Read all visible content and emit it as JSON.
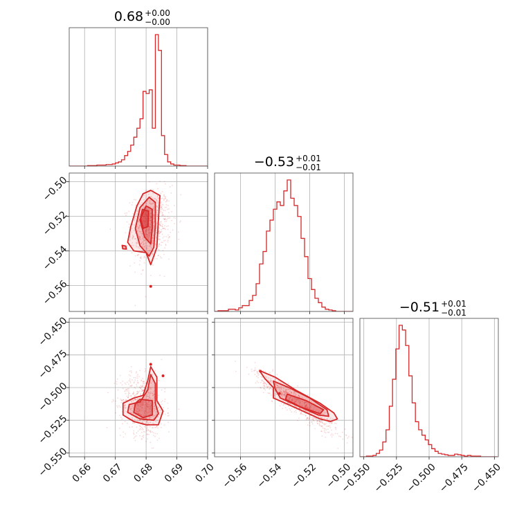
{
  "chart_data": {
    "type": "corner",
    "color": "#d62728",
    "parameters": [
      {
        "index": 0,
        "range": [
          0.655,
          0.7
        ],
        "ticks": [
          0.66,
          0.67,
          0.68,
          0.69,
          0.7
        ],
        "tick_labels": [
          "0.66",
          "0.67",
          "0.68",
          "0.69",
          "0.70"
        ],
        "title": {
          "value": "0.68",
          "upper": "+0.00",
          "lower": "−0.00"
        },
        "histogram": {
          "bin_start": 0.655,
          "bin_width": 0.001,
          "counts": [
            0,
            0,
            0,
            0,
            0,
            0,
            1,
            1,
            1,
            2,
            2,
            2,
            3,
            3,
            4,
            6,
            8,
            12,
            20,
            28,
            40,
            55,
            72,
            90,
            142,
            138,
            145,
            72,
            250,
            220,
            58,
            22,
            8,
            4,
            2,
            2,
            1,
            1,
            0,
            0,
            0,
            0,
            0,
            0,
            0
          ]
        }
      },
      {
        "index": 1,
        "range": [
          -0.575,
          -0.495
        ],
        "ticks": [
          -0.56,
          -0.54,
          -0.52,
          -0.5
        ],
        "tick_labels": [
          "−0.56",
          "−0.54",
          "−0.52",
          "−0.50"
        ],
        "title": {
          "value": "−0.53",
          "upper": "+0.01",
          "lower": "−0.01"
        },
        "histogram": {
          "bin_start": -0.575,
          "bin_width": 0.002,
          "counts": [
            0,
            1,
            1,
            1,
            3,
            3,
            2,
            5,
            8,
            8,
            15,
            22,
            38,
            65,
            82,
            110,
            125,
            140,
            150,
            145,
            165,
            180,
            155,
            145,
            130,
            100,
            75,
            45,
            30,
            18,
            12,
            6,
            3,
            2,
            1,
            0,
            0,
            0,
            0,
            0
          ]
        }
      },
      {
        "index": 2,
        "range": [
          -0.553,
          -0.447
        ],
        "ticks": [
          -0.55,
          -0.525,
          -0.5,
          -0.475,
          -0.45
        ],
        "tick_labels": [
          "−0.550",
          "−0.525",
          "−0.500",
          "−0.475",
          "−0.450"
        ],
        "title": {
          "value": "−0.51",
          "upper": "+0.01",
          "lower": "−0.01"
        },
        "histogram": {
          "bin_start": -0.553,
          "bin_width": 0.0025,
          "counts": [
            0,
            0,
            1,
            1,
            2,
            5,
            10,
            22,
            40,
            75,
            115,
            160,
            195,
            188,
            165,
            120,
            80,
            52,
            40,
            32,
            25,
            18,
            12,
            8,
            5,
            4,
            3,
            2,
            2,
            4,
            3,
            2,
            1,
            2,
            1,
            1,
            1,
            0,
            0,
            0,
            0,
            0
          ]
        }
      }
    ],
    "pairs": [
      {
        "x_param": 0,
        "y_param": 1,
        "center": [
          0.6815,
          -0.526
        ],
        "spread": [
          0.0025,
          0.008
        ],
        "correlation": 0.15,
        "contours": [
          [
            [
              0.6815,
              -0.505
            ],
            [
              0.6845,
              -0.508
            ],
            [
              0.684,
              -0.522
            ],
            [
              0.6835,
              -0.538
            ],
            [
              0.6815,
              -0.548
            ],
            [
              0.68,
              -0.541
            ],
            [
              0.676,
              -0.54
            ],
            [
              0.674,
              -0.535
            ],
            [
              0.675,
              -0.526
            ],
            [
              0.677,
              -0.514
            ],
            [
              0.679,
              -0.507
            ]
          ],
          [
            [
              0.681,
              -0.509
            ],
            [
              0.683,
              -0.512
            ],
            [
              0.683,
              -0.525
            ],
            [
              0.6825,
              -0.538
            ],
            [
              0.681,
              -0.543
            ],
            [
              0.678,
              -0.537
            ],
            [
              0.6765,
              -0.527
            ],
            [
              0.678,
              -0.515
            ]
          ],
          [
            [
              0.68,
              -0.514
            ],
            [
              0.682,
              -0.516
            ],
            [
              0.682,
              -0.527
            ],
            [
              0.6815,
              -0.536
            ],
            [
              0.6795,
              -0.532
            ],
            [
              0.678,
              -0.522
            ]
          ],
          [
            [
              0.6788,
              -0.516
            ],
            [
              0.6808,
              -0.517
            ],
            [
              0.6806,
              -0.526
            ],
            [
              0.679,
              -0.527
            ],
            [
              0.6782,
              -0.521
            ]
          ],
          [
            [
              0.6722,
              -0.5368
            ],
            [
              0.6734,
              -0.5372
            ],
            [
              0.6736,
              -0.539
            ],
            [
              0.6724,
              -0.5388
            ]
          ]
        ]
      },
      {
        "x_param": 0,
        "y_param": 2,
        "center": [
          0.679,
          -0.514
        ],
        "spread": [
          0.0028,
          0.009
        ],
        "correlation": -0.2,
        "contours": [
          [
            [
              0.6815,
              -0.484
            ],
            [
              0.6835,
              -0.492
            ],
            [
              0.6835,
              -0.51
            ],
            [
              0.6855,
              -0.518
            ],
            [
              0.684,
              -0.5285
            ],
            [
              0.68,
              -0.5285
            ],
            [
              0.676,
              -0.526
            ],
            [
              0.6725,
              -0.521
            ],
            [
              0.6725,
              -0.512
            ],
            [
              0.676,
              -0.508
            ],
            [
              0.679,
              -0.506
            ],
            [
              0.6805,
              -0.495
            ]
          ],
          [
            [
              0.6815,
              -0.49
            ],
            [
              0.683,
              -0.497
            ],
            [
              0.683,
              -0.512
            ],
            [
              0.684,
              -0.52
            ],
            [
              0.6825,
              -0.525
            ],
            [
              0.678,
              -0.524
            ],
            [
              0.674,
              -0.519
            ],
            [
              0.6745,
              -0.513
            ],
            [
              0.678,
              -0.511
            ],
            [
              0.6805,
              -0.502
            ]
          ],
          [
            [
              0.678,
              -0.509
            ],
            [
              0.682,
              -0.51
            ],
            [
              0.682,
              -0.521
            ],
            [
              0.679,
              -0.523
            ],
            [
              0.676,
              -0.519
            ],
            [
              0.6765,
              -0.512
            ]
          ]
        ]
      },
      {
        "x_param": 1,
        "y_param": 2,
        "center": [
          -0.528,
          -0.511
        ],
        "spread": [
          0.009,
          0.009
        ],
        "correlation": -0.92,
        "contours": [
          [
            [
              -0.549,
              -0.487
            ],
            [
              -0.54,
              -0.492
            ],
            [
              -0.528,
              -0.502
            ],
            [
              -0.514,
              -0.512
            ],
            [
              -0.506,
              -0.5195
            ],
            [
              -0.504,
              -0.524
            ],
            [
              -0.508,
              -0.526
            ],
            [
              -0.514,
              -0.524
            ],
            [
              -0.524,
              -0.518
            ],
            [
              -0.534,
              -0.512
            ],
            [
              -0.541,
              -0.508
            ],
            [
              -0.541,
              -0.5
            ],
            [
              -0.546,
              -0.493
            ]
          ],
          [
            [
              -0.541,
              -0.495
            ],
            [
              -0.532,
              -0.5
            ],
            [
              -0.52,
              -0.508
            ],
            [
              -0.51,
              -0.517
            ],
            [
              -0.509,
              -0.522
            ],
            [
              -0.515,
              -0.521
            ],
            [
              -0.527,
              -0.514
            ],
            [
              -0.537,
              -0.508
            ],
            [
              -0.54,
              -0.501
            ]
          ],
          [
            [
              -0.533,
              -0.505
            ],
            [
              -0.522,
              -0.51
            ],
            [
              -0.512,
              -0.517
            ],
            [
              -0.514,
              -0.52
            ],
            [
              -0.525,
              -0.515
            ],
            [
              -0.534,
              -0.509
            ]
          ]
        ]
      }
    ]
  }
}
